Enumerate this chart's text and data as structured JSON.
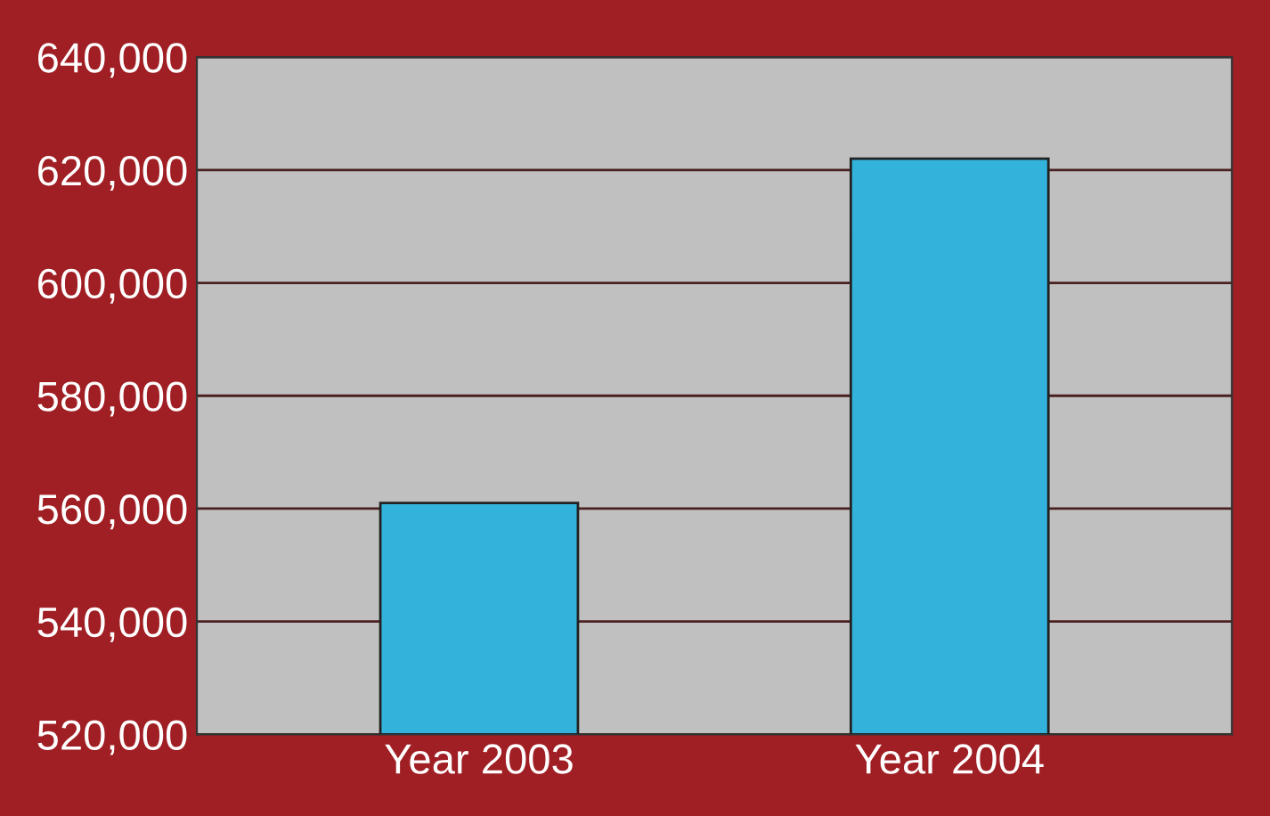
{
  "chart_data": {
    "type": "bar",
    "categories": [
      "Year 2003",
      "Year 2004"
    ],
    "values": [
      561000,
      622000
    ],
    "color": "#33b3dc",
    "ylim": [
      520000,
      640000
    ],
    "yticks": [
      {
        "value": 520000,
        "label": "520,000"
      },
      {
        "value": 540000,
        "label": "540,000"
      },
      {
        "value": 560000,
        "label": "560,000"
      },
      {
        "value": 580000,
        "label": "580,000"
      },
      {
        "value": 600000,
        "label": "600,000"
      },
      {
        "value": 620000,
        "label": "620,000"
      },
      {
        "value": 640000,
        "label": "640,000"
      }
    ],
    "grid": "y"
  }
}
